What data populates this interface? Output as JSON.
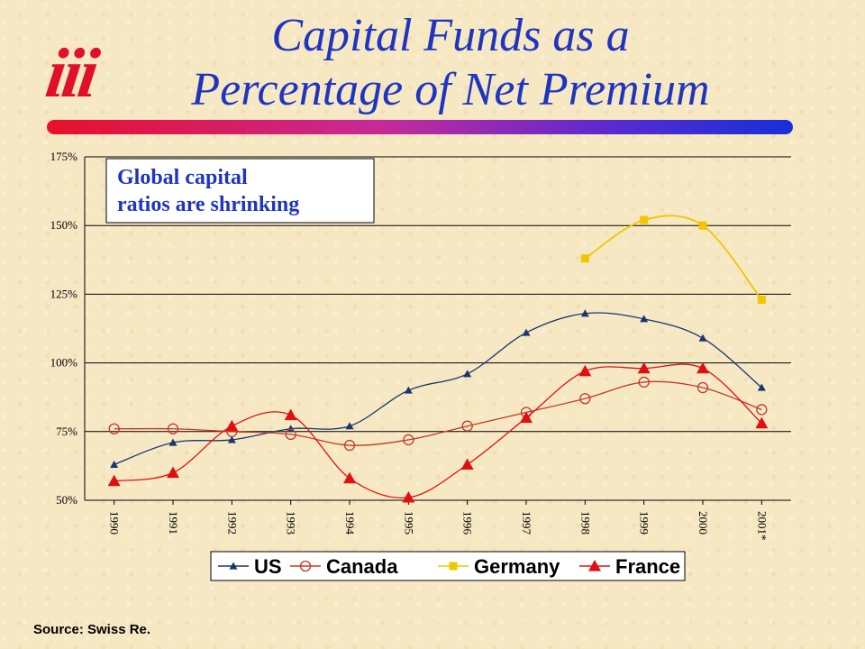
{
  "logo": "iii",
  "title_line1": "Capital Funds as a",
  "title_line2": "Percentage of Net Premium",
  "source": "Source: Swiss Re.",
  "chart_data": {
    "type": "line",
    "categories": [
      "1990",
      "1991",
      "1992",
      "1993",
      "1994",
      "1995",
      "1996",
      "1997",
      "1998",
      "1999",
      "2000",
      "2001*"
    ],
    "ylim": [
      50,
      175
    ],
    "yticks": [
      "50%",
      "75%",
      "100%",
      "125%",
      "150%",
      "175%"
    ],
    "grid": "horizontal",
    "legend_position": "bottom",
    "annotation": [
      "Global capital",
      "ratios are shrinking"
    ],
    "series": [
      {
        "name": "US",
        "color": "#17376e",
        "marker": "triangle-small",
        "values": [
          63,
          71,
          72,
          76,
          77,
          90,
          96,
          111,
          118,
          116,
          109,
          91
        ]
      },
      {
        "name": "Canada",
        "color": "#c0392b",
        "marker": "circle-open",
        "values": [
          76,
          76,
          75,
          74,
          70,
          72,
          77,
          82,
          87,
          93,
          91,
          83
        ]
      },
      {
        "name": "Germany",
        "color": "#f2c500",
        "marker": "square",
        "values": [
          null,
          null,
          null,
          null,
          null,
          null,
          null,
          null,
          138,
          152,
          150,
          123
        ]
      },
      {
        "name": "France",
        "color": "#e01010",
        "marker": "triangle",
        "values": [
          57,
          60,
          77,
          81,
          58,
          51,
          63,
          80,
          97,
          98,
          98,
          78
        ]
      }
    ]
  }
}
